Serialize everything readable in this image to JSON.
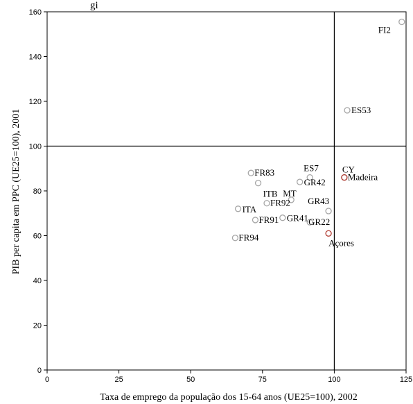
{
  "chart_data": {
    "type": "scatter",
    "title": "gi",
    "xlabel": "Taxa de emprego da população dos 15-64 anos (UE25=100), 2002",
    "ylabel": "PIB per capita em PPC (UE25=100), 2001",
    "xlim": [
      0,
      125
    ],
    "ylim": [
      0,
      160
    ],
    "xticks": [
      "0",
      "25",
      "50",
      "75",
      "100",
      "125"
    ],
    "yticks": [
      "0",
      "20",
      "40",
      "60",
      "80",
      "100",
      "120",
      "140",
      "160"
    ],
    "reference_lines": {
      "x": 100,
      "y": 100
    },
    "grid": false,
    "colors": {
      "default_marker": "#a6a6a6",
      "highlight_marker": "#b03a30",
      "axis": "#000000"
    },
    "points": [
      {
        "label": "FI2",
        "x": 123.5,
        "y": 155.5,
        "highlight": false
      },
      {
        "label": "ES53",
        "x": 104.5,
        "y": 116.0,
        "highlight": false
      },
      {
        "label": "CY",
        "x": 103.5,
        "y": 86.0,
        "highlight": false
      },
      {
        "label": "Madeira",
        "x": 103.5,
        "y": 86.0,
        "highlight": true
      },
      {
        "label": "ES7",
        "x": 91.5,
        "y": 86.0,
        "highlight": false
      },
      {
        "label": "GR42",
        "x": 88.0,
        "y": 84.0,
        "highlight": false
      },
      {
        "label": "FR83",
        "x": 71.0,
        "y": 88.0,
        "highlight": false
      },
      {
        "label": "ITB",
        "x": 73.5,
        "y": 83.5,
        "highlight": false
      },
      {
        "label": "FR92",
        "x": 76.5,
        "y": 74.5,
        "highlight": false
      },
      {
        "label": "MT",
        "x": 85.0,
        "y": 76.0,
        "highlight": false
      },
      {
        "label": "GR43",
        "x": 98.0,
        "y": 71.0,
        "highlight": false
      },
      {
        "label": "ITA",
        "x": 66.5,
        "y": 72.0,
        "highlight": false
      },
      {
        "label": "FR91",
        "x": 72.5,
        "y": 67.0,
        "highlight": false
      },
      {
        "label": "GR41",
        "x": 82.0,
        "y": 68.0,
        "highlight": false
      },
      {
        "label": "GR22",
        "x": 91.5,
        "y": 66.0,
        "highlight": false
      },
      {
        "label": "Açores",
        "x": 98.0,
        "y": 61.0,
        "highlight": true
      },
      {
        "label": "FR94",
        "x": 65.5,
        "y": 59.0,
        "highlight": false
      }
    ]
  }
}
